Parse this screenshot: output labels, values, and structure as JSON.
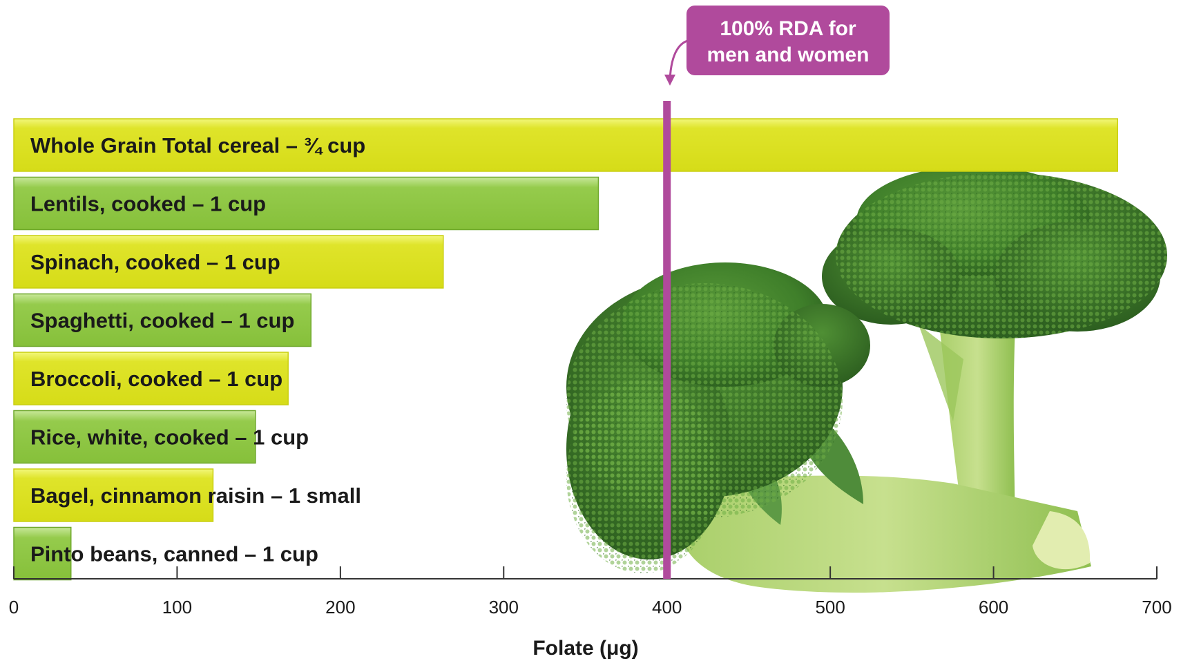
{
  "chart_data": {
    "type": "bar",
    "orientation": "horizontal",
    "categories": [
      "Whole Grain Total cereal – ¾ cup",
      "Lentils, cooked – 1 cup",
      "Spinach, cooked – 1 cup",
      "Spaghetti, cooked – 1 cup",
      "Broccoli, cooked – 1 cup",
      "Rice, white, cooked – 1 cup",
      "Bagel, cinnamon raisin – 1 small",
      "Pinto beans, canned – 1 cup"
    ],
    "values": [
      676,
      358,
      263,
      182,
      168,
      148,
      122,
      35
    ],
    "xlabel": "Folate (μg)",
    "xlim": [
      0,
      700
    ],
    "xticks": [
      "0",
      "100",
      "200",
      "300",
      "400",
      "500",
      "600",
      "700"
    ],
    "reference_line": {
      "value": 400,
      "label_line1": "100% RDA for",
      "label_line2": "men and women",
      "color": "#b04a9c"
    },
    "bar_colors": [
      "#d9e021",
      "#8dc63f"
    ],
    "grid": false,
    "background_image": "broccoli"
  }
}
